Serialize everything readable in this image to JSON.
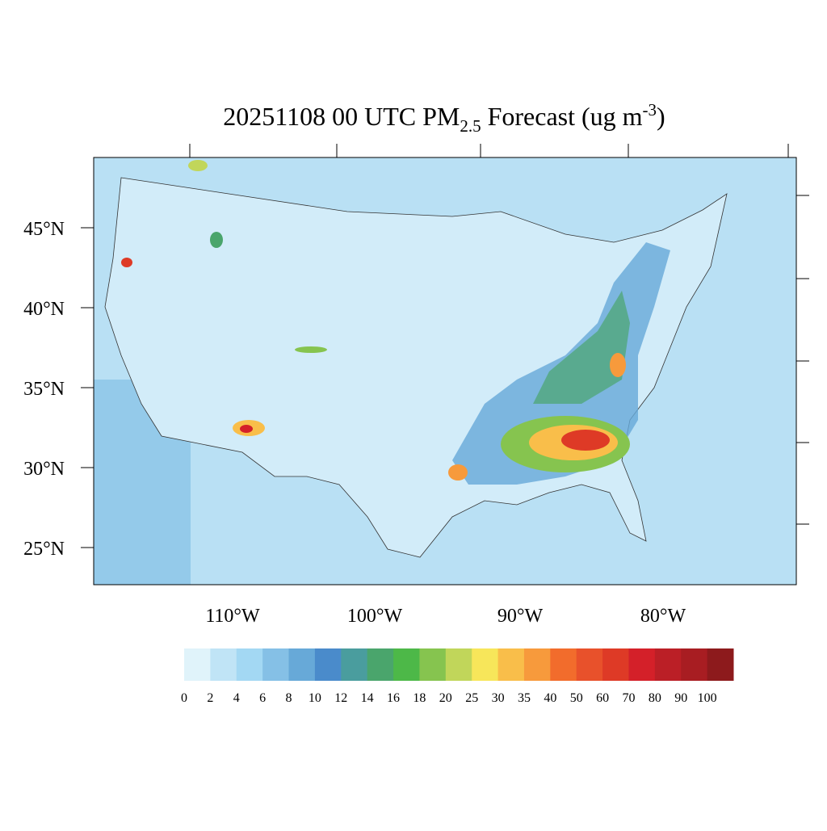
{
  "title": {
    "main": "20251108 00 UTC PM",
    "subscript": "2.5",
    "middle": " Forecast (ug m",
    "superscript": "-3",
    "end": ")"
  },
  "lat_labels": [
    "45°N",
    "40°N",
    "35°N",
    "30°N",
    "25°N"
  ],
  "lon_labels": [
    "110°W",
    "100°W",
    "90°W",
    "80°W"
  ],
  "colorbar": {
    "labels": [
      0,
      2,
      4,
      6,
      8,
      10,
      12,
      14,
      16,
      18,
      20,
      25,
      30,
      35,
      40,
      50,
      60,
      70,
      80,
      90,
      100
    ],
    "colors": [
      "#e0f3fa",
      "#c0e4f6",
      "#a3d8f3",
      "#85c0e6",
      "#67a9d8",
      "#4a8bcb",
      "#4a9d9e",
      "#4aa56c",
      "#4db848",
      "#86c44f",
      "#c1d65a",
      "#f7e65a",
      "#f9be4a",
      "#f79a3c",
      "#f26c2c",
      "#e8512b",
      "#de3a26",
      "#d42029",
      "#bb1f26",
      "#a81d22",
      "#8d1a1c"
    ]
  }
}
